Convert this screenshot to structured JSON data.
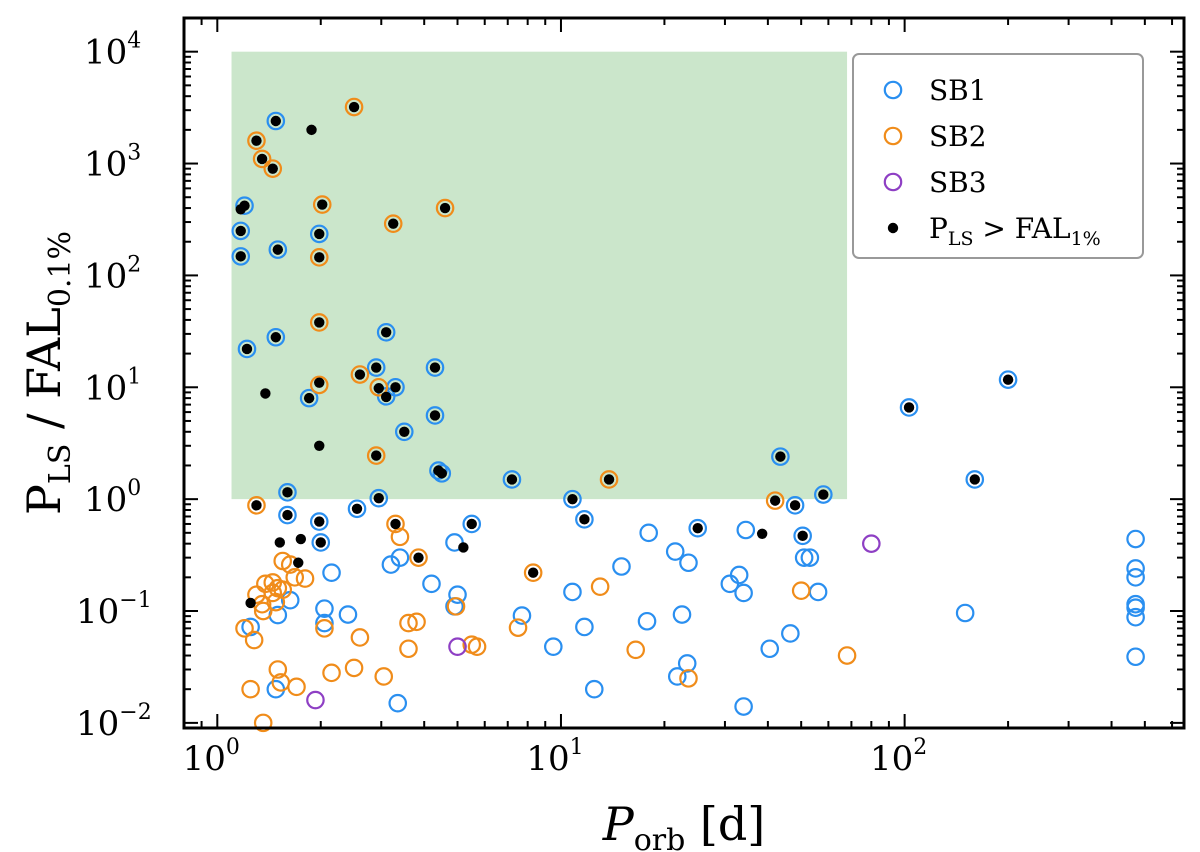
{
  "chart_data": {
    "type": "scatter",
    "xlabel": "P",
    "xlabel_sub": "orb",
    "xlabel_unit": "[d]",
    "ylabel_main": "P",
    "ylabel_sub": "LS",
    "ylabel_sep": " / FAL",
    "ylabel_sub2": "0.1%",
    "x_scale": "log",
    "y_scale": "log",
    "xlim": [
      0.8,
      650
    ],
    "ylim": [
      0.009,
      20000
    ],
    "x_ticks": [
      {
        "value": 1,
        "base": "10",
        "exp": "0"
      },
      {
        "value": 10,
        "base": "10",
        "exp": "1"
      },
      {
        "value": 100,
        "base": "10",
        "exp": "2"
      }
    ],
    "y_ticks": [
      {
        "value": 0.01,
        "base": "10",
        "exp": "−2"
      },
      {
        "value": 0.1,
        "base": "10",
        "exp": "−1"
      },
      {
        "value": 1,
        "base": "10",
        "exp": "0"
      },
      {
        "value": 10,
        "base": "10",
        "exp": "1"
      },
      {
        "value": 100,
        "base": "10",
        "exp": "2"
      },
      {
        "value": 1000,
        "base": "10",
        "exp": "3"
      },
      {
        "value": 10000,
        "base": "10",
        "exp": "4"
      }
    ],
    "grid": false,
    "legend_position": "top-right",
    "shaded_region": {
      "x": [
        1.1,
        68
      ],
      "y": [
        1,
        10000
      ],
      "color": "#cbe6cb"
    },
    "colors": {
      "SB1": "#2a8ff0",
      "SB2": "#f08c1a",
      "SB3": "#8e3fc4",
      "detected": "#000000",
      "legend_border": "#999999"
    },
    "legend": [
      {
        "key": "SB1",
        "label": "SB1"
      },
      {
        "key": "SB2",
        "label": "SB2"
      },
      {
        "key": "SB3",
        "label": "SB3"
      },
      {
        "key": "detected",
        "label_main": "P",
        "label_sub": "LS",
        "label_mid": " > FAL",
        "label_sub2": "1%"
      }
    ],
    "series": [
      {
        "name": "SB1",
        "points": [
          [
            1.48,
            2400
          ],
          [
            1.2,
            420
          ],
          [
            1.17,
            250
          ],
          [
            1.17,
            148
          ],
          [
            1.5,
            170
          ],
          [
            1.98,
            235
          ],
          [
            1.48,
            28
          ],
          [
            1.22,
            22
          ],
          [
            1.85,
            8
          ],
          [
            2.9,
            15
          ],
          [
            3.1,
            31
          ],
          [
            3.1,
            8.3
          ],
          [
            3.3,
            10
          ],
          [
            3.5,
            4
          ],
          [
            4.3,
            15
          ],
          [
            4.3,
            5.6
          ],
          [
            4.4,
            1.8
          ],
          [
            4.5,
            1.7
          ],
          [
            7.2,
            1.5
          ],
          [
            10.8,
            1
          ],
          [
            11.7,
            0.66
          ],
          [
            2.95,
            1.02
          ],
          [
            2.55,
            0.82
          ],
          [
            1.6,
            1.15
          ],
          [
            1.6,
            0.72
          ],
          [
            1.98,
            0.63
          ],
          [
            2,
            0.41
          ],
          [
            43.5,
            2.4
          ],
          [
            48,
            0.88
          ],
          [
            50.5,
            0.47
          ],
          [
            58,
            1.1
          ],
          [
            103,
            6.6
          ],
          [
            200,
            11.7
          ],
          [
            160,
            1.5
          ],
          [
            5.5,
            0.6
          ],
          [
            4.9,
            0.41
          ],
          [
            5.0,
            0.14
          ],
          [
            4.9,
            0.11
          ],
          [
            3.4,
            0.3
          ],
          [
            3.2,
            0.26
          ],
          [
            4.2,
            0.175
          ],
          [
            2.15,
            0.22
          ],
          [
            2.05,
            0.105
          ],
          [
            2.05,
            0.078
          ],
          [
            1.63,
            0.125
          ],
          [
            1.5,
            0.092
          ],
          [
            1.25,
            0.072
          ],
          [
            2.4,
            0.093
          ],
          [
            1.48,
            0.02
          ],
          [
            3.35,
            0.015
          ],
          [
            7.7,
            0.091
          ],
          [
            9.5,
            0.048
          ],
          [
            10.8,
            0.148
          ],
          [
            11.7,
            0.072
          ],
          [
            12.5,
            0.02
          ],
          [
            15,
            0.25
          ],
          [
            18,
            0.5
          ],
          [
            17.8,
            0.081
          ],
          [
            21.5,
            0.34
          ],
          [
            23.5,
            0.27
          ],
          [
            22.5,
            0.093
          ],
          [
            23.3,
            0.034
          ],
          [
            21.8,
            0.026
          ],
          [
            25,
            0.55
          ],
          [
            34.5,
            0.53
          ],
          [
            31,
            0.175
          ],
          [
            33,
            0.21
          ],
          [
            34,
            0.145
          ],
          [
            40.5,
            0.046
          ],
          [
            46.5,
            0.063
          ],
          [
            51,
            0.3
          ],
          [
            53,
            0.3
          ],
          [
            56,
            0.148
          ],
          [
            34,
            0.014
          ],
          [
            150,
            0.096
          ],
          [
            470,
            0.44
          ],
          [
            470,
            0.24
          ],
          [
            470,
            0.2
          ],
          [
            470,
            0.115
          ],
          [
            470,
            0.107
          ],
          [
            470,
            0.088
          ],
          [
            470,
            0.039
          ]
        ]
      },
      {
        "name": "SB2",
        "points": [
          [
            2.5,
            3200
          ],
          [
            1.3,
            1600
          ],
          [
            1.35,
            1100
          ],
          [
            1.45,
            900
          ],
          [
            2.02,
            430
          ],
          [
            4.6,
            400
          ],
          [
            3.25,
            290
          ],
          [
            1.98,
            145
          ],
          [
            1.98,
            38
          ],
          [
            2.6,
            13
          ],
          [
            1.98,
            10.5
          ],
          [
            2.95,
            10
          ],
          [
            2.9,
            2.45
          ],
          [
            13.8,
            1.5
          ],
          [
            42,
            0.97
          ],
          [
            1.3,
            0.88
          ],
          [
            3.3,
            0.6
          ],
          [
            3.4,
            0.46
          ],
          [
            3.85,
            0.3
          ],
          [
            8.3,
            0.22
          ],
          [
            1.55,
            0.28
          ],
          [
            1.63,
            0.26
          ],
          [
            1.68,
            0.2
          ],
          [
            1.8,
            0.195
          ],
          [
            1.38,
            0.175
          ],
          [
            1.45,
            0.18
          ],
          [
            1.5,
            0.16
          ],
          [
            1.55,
            0.155
          ],
          [
            1.45,
            0.145
          ],
          [
            1.48,
            0.12
          ],
          [
            1.35,
            0.115
          ],
          [
            1.36,
            0.1
          ],
          [
            1.3,
            0.14
          ],
          [
            1.2,
            0.07
          ],
          [
            1.28,
            0.055
          ],
          [
            2.05,
            0.07
          ],
          [
            2.6,
            0.058
          ],
          [
            3.6,
            0.078
          ],
          [
            3.8,
            0.08
          ],
          [
            3.6,
            0.046
          ],
          [
            4.95,
            0.11
          ],
          [
            5.5,
            0.05
          ],
          [
            5.7,
            0.048
          ],
          [
            7.5,
            0.071
          ],
          [
            13,
            0.165
          ],
          [
            16.5,
            0.045
          ],
          [
            23.5,
            0.025
          ],
          [
            50,
            0.152
          ],
          [
            68,
            0.04
          ],
          [
            1.5,
            0.03
          ],
          [
            1.25,
            0.02
          ],
          [
            1.53,
            0.023
          ],
          [
            1.7,
            0.021
          ],
          [
            2.15,
            0.028
          ],
          [
            2.5,
            0.031
          ],
          [
            3.05,
            0.026
          ],
          [
            1.36,
            0.01
          ]
        ]
      },
      {
        "name": "SB3",
        "points": [
          [
            1.93,
            0.016
          ],
          [
            5.0,
            0.048
          ],
          [
            80,
            0.4
          ]
        ]
      },
      {
        "name": "detected",
        "points": [
          [
            1.48,
            2400
          ],
          [
            2.5,
            3200
          ],
          [
            1.88,
            2000
          ],
          [
            1.3,
            1600
          ],
          [
            1.35,
            1100
          ],
          [
            1.45,
            900
          ],
          [
            1.2,
            420
          ],
          [
            1.17,
            390
          ],
          [
            2.02,
            430
          ],
          [
            4.6,
            400
          ],
          [
            3.25,
            290
          ],
          [
            1.17,
            250
          ],
          [
            1.17,
            148
          ],
          [
            1.5,
            170
          ],
          [
            1.98,
            235
          ],
          [
            1.98,
            145
          ],
          [
            1.98,
            38
          ],
          [
            1.48,
            28
          ],
          [
            1.22,
            22
          ],
          [
            2.9,
            15
          ],
          [
            3.1,
            31
          ],
          [
            2.6,
            13
          ],
          [
            1.98,
            11
          ],
          [
            2.95,
            9.8
          ],
          [
            3.3,
            10
          ],
          [
            3.1,
            8.2
          ],
          [
            1.85,
            8
          ],
          [
            1.38,
            8.8
          ],
          [
            4.3,
            15
          ],
          [
            4.3,
            5.6
          ],
          [
            3.5,
            4
          ],
          [
            1.98,
            3
          ],
          [
            2.9,
            2.45
          ],
          [
            4.4,
            1.8
          ],
          [
            4.5,
            1.7
          ],
          [
            7.2,
            1.5
          ],
          [
            13.8,
            1.5
          ],
          [
            10.8,
            1
          ],
          [
            11.7,
            0.66
          ],
          [
            2.95,
            1.02
          ],
          [
            2.55,
            0.82
          ],
          [
            1.6,
            1.15
          ],
          [
            1.6,
            0.72
          ],
          [
            1.98,
            0.63
          ],
          [
            1.3,
            0.88
          ],
          [
            3.3,
            0.6
          ],
          [
            2,
            0.41
          ],
          [
            1.52,
            0.41
          ],
          [
            1.75,
            0.44
          ],
          [
            1.72,
            0.27
          ],
          [
            3.85,
            0.3
          ],
          [
            5.5,
            0.6
          ],
          [
            5.2,
            0.37
          ],
          [
            8.3,
            0.22
          ],
          [
            1.25,
            0.118
          ],
          [
            25,
            0.55
          ],
          [
            38.5,
            0.49
          ],
          [
            42,
            0.97
          ],
          [
            43.5,
            2.4
          ],
          [
            48,
            0.88
          ],
          [
            50.5,
            0.47
          ],
          [
            58,
            1.1
          ],
          [
            103,
            6.6
          ],
          [
            200,
            11.7
          ],
          [
            160,
            1.5
          ]
        ]
      }
    ]
  }
}
